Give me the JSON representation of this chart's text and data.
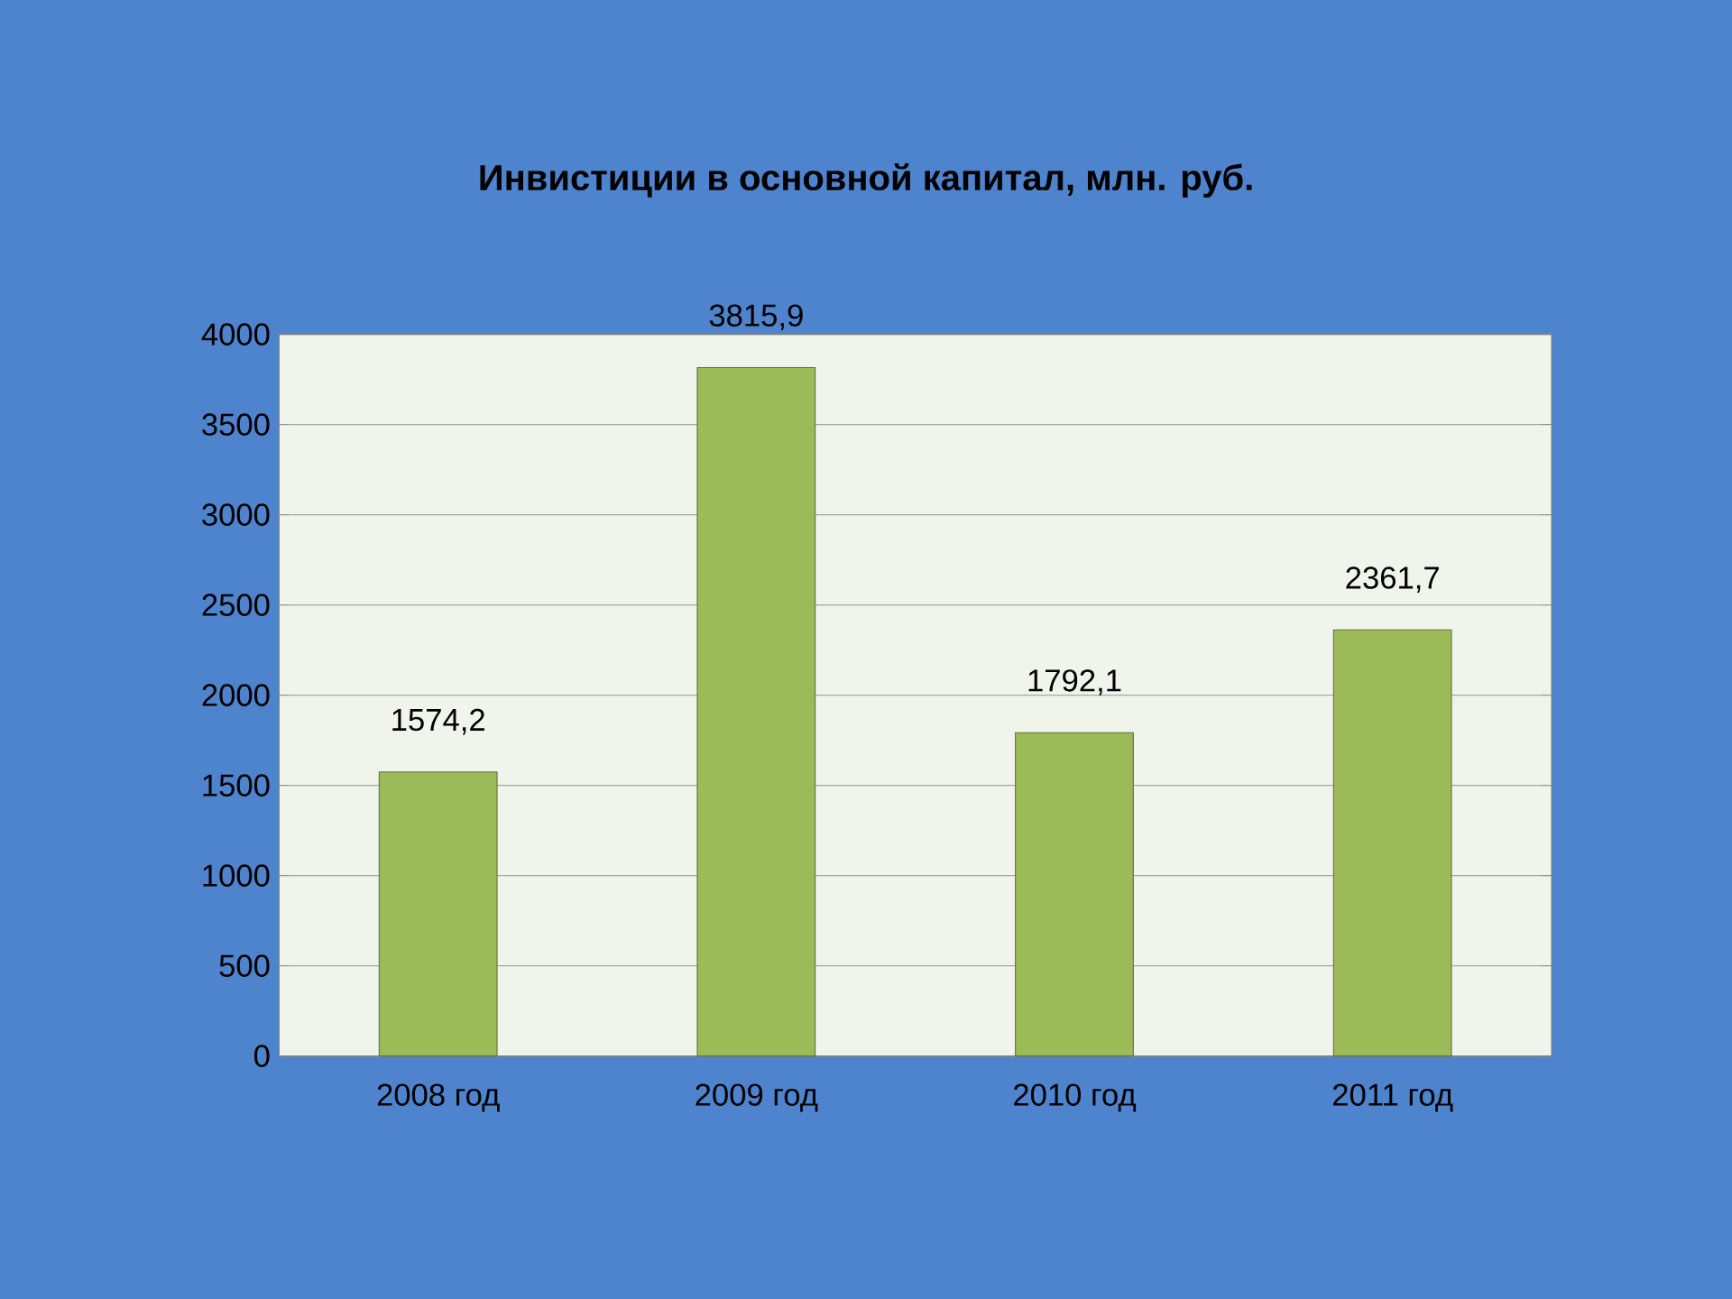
{
  "chart_data": {
    "type": "bar",
    "title": "Инвистиции в основной капитал, млн. руб.",
    "categories": [
      "2008 год",
      "2009 год",
      "2010 год",
      "2011 год"
    ],
    "values": [
      1574.2,
      3815.9,
      1792.1,
      2361.7
    ],
    "value_labels": [
      "1574,2",
      "3815,9",
      "1792,1",
      "2361,7"
    ],
    "color": "#9bbb59",
    "ylim": [
      0,
      4000
    ],
    "yticks": [
      0,
      500,
      1000,
      1500,
      2000,
      2500,
      3000,
      3500,
      4000
    ],
    "grid": "y"
  }
}
